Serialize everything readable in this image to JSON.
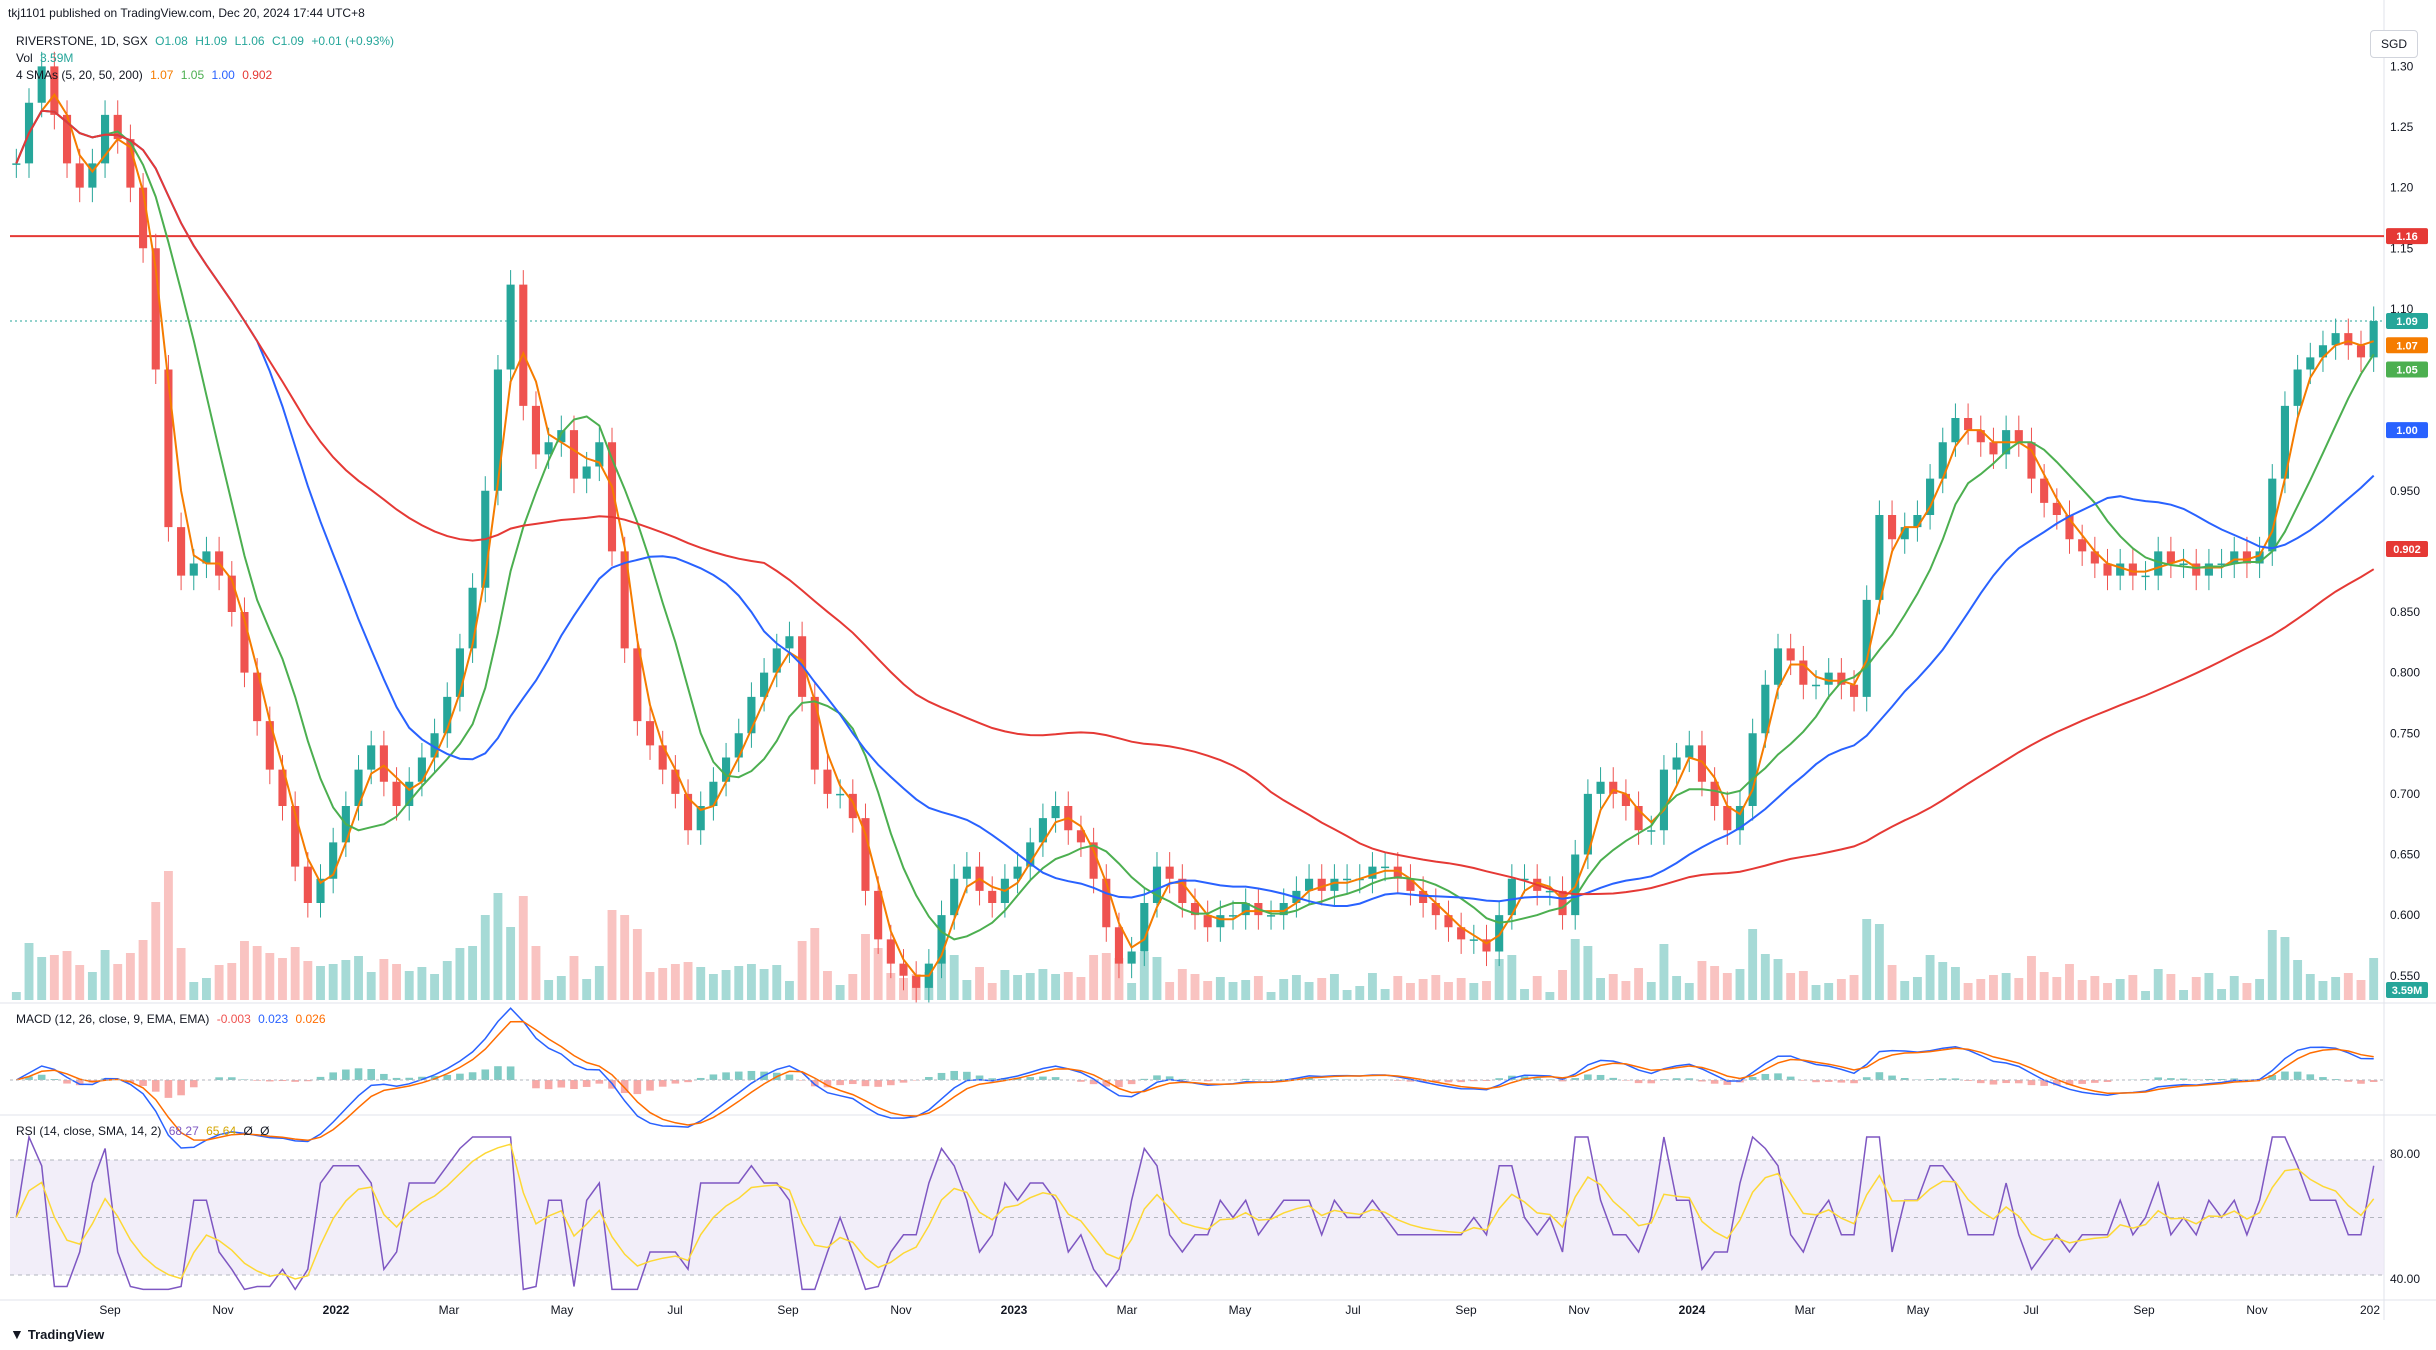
{
  "header": {
    "published_by": "tkj1101 published on TradingView.com, Dec 20, 2024 17:44 UTC+8"
  },
  "ohlc": {
    "symbol": "RIVERSTONE, 1D, SGX",
    "o": "O1.08",
    "h": "H1.09",
    "l": "L1.06",
    "c": "C1.09",
    "change": "+0.01 (+0.93%)"
  },
  "volume_legend": {
    "label": "Vol",
    "value": "3.59M"
  },
  "ma_legend": {
    "label": "4 SMAs (5, 20, 50, 200)",
    "v5": "1.07",
    "v20": "1.05",
    "v50": "1.00",
    "v200": "0.902"
  },
  "currency": "SGD",
  "macd_legend": {
    "label": "MACD (12, 26, close, 9, EMA, EMA)",
    "hist": "-0.003",
    "macd": "0.023",
    "signal": "0.026"
  },
  "rsi_legend": {
    "label": "RSI (14, close, SMA, 14, 2)",
    "rsi": "68.27",
    "ma": "65.64",
    "e1": "Ø",
    "e2": "Ø"
  },
  "branding": "TradingView",
  "colors": {
    "up": "#26a69a",
    "down": "#ef5350",
    "sma5": "#f57c00",
    "sma20": "#4caf50",
    "sma50": "#2962ff",
    "sma200": "#e53935",
    "hline": "#e53935",
    "rsi": "#7e57c2",
    "rsi_ma": "#fdd835",
    "macd_line": "#2962ff",
    "signal_line": "#ff6d00"
  },
  "chart_data": {
    "type": "candlestick",
    "price_scale": {
      "min": 0.53,
      "max": 1.33,
      "ticks": [
        "1.30",
        "1.25",
        "1.20",
        "1.15",
        "1.10",
        "0.950",
        "0.900",
        "0.850",
        "0.800",
        "0.750",
        "0.700",
        "0.650",
        "0.600",
        "0.550"
      ]
    },
    "price_labels": [
      {
        "value": 1.16,
        "text": "1.16",
        "color": "#e53935"
      },
      {
        "value": 1.09,
        "text": "1.09",
        "color": "#26a69a"
      },
      {
        "value": 1.07,
        "text": "1.07",
        "color": "#f57c00"
      },
      {
        "value": 1.05,
        "text": "1.05",
        "color": "#4caf50"
      },
      {
        "value": 1.0,
        "text": "1.00",
        "color": "#2962ff"
      },
      {
        "value": 0.902,
        "text": "0.902",
        "color": "#e53935"
      }
    ],
    "horizontal_line": 1.16,
    "last_close": 1.09,
    "volume_label": "3.59M",
    "time_axis": [
      "Sep",
      "Nov",
      "2022",
      "Mar",
      "May",
      "Jul",
      "Sep",
      "Nov",
      "2023",
      "Mar",
      "May",
      "Jul",
      "Sep",
      "Nov",
      "2024",
      "Mar",
      "May",
      "Jul",
      "Sep",
      "Nov",
      "202"
    ],
    "closes": [
      1.22,
      1.27,
      1.3,
      1.26,
      1.22,
      1.2,
      1.22,
      1.26,
      1.24,
      1.2,
      1.15,
      1.05,
      0.92,
      0.88,
      0.89,
      0.9,
      0.88,
      0.85,
      0.8,
      0.76,
      0.72,
      0.69,
      0.64,
      0.61,
      0.63,
      0.66,
      0.69,
      0.72,
      0.74,
      0.71,
      0.69,
      0.71,
      0.73,
      0.75,
      0.78,
      0.82,
      0.87,
      0.95,
      1.05,
      1.12,
      1.02,
      0.98,
      0.99,
      1.0,
      0.96,
      0.97,
      0.99,
      0.9,
      0.82,
      0.76,
      0.74,
      0.72,
      0.7,
      0.67,
      0.69,
      0.71,
      0.73,
      0.75,
      0.78,
      0.8,
      0.82,
      0.83,
      0.78,
      0.72,
      0.7,
      0.7,
      0.68,
      0.62,
      0.58,
      0.56,
      0.55,
      0.54,
      0.56,
      0.6,
      0.63,
      0.64,
      0.62,
      0.61,
      0.63,
      0.64,
      0.66,
      0.68,
      0.69,
      0.67,
      0.66,
      0.63,
      0.59,
      0.56,
      0.57,
      0.61,
      0.64,
      0.63,
      0.61,
      0.6,
      0.59,
      0.6,
      0.6,
      0.61,
      0.6,
      0.6,
      0.61,
      0.62,
      0.63,
      0.62,
      0.63,
      0.63,
      0.63,
      0.64,
      0.64,
      0.63,
      0.62,
      0.61,
      0.6,
      0.59,
      0.58,
      0.58,
      0.57,
      0.6,
      0.63,
      0.63,
      0.62,
      0.62,
      0.6,
      0.65,
      0.7,
      0.71,
      0.7,
      0.69,
      0.67,
      0.67,
      0.72,
      0.73,
      0.74,
      0.71,
      0.69,
      0.67,
      0.69,
      0.75,
      0.79,
      0.82,
      0.81,
      0.79,
      0.79,
      0.8,
      0.79,
      0.78,
      0.86,
      0.93,
      0.91,
      0.92,
      0.93,
      0.96,
      0.99,
      1.01,
      1.0,
      0.99,
      0.98,
      1.0,
      0.99,
      0.96,
      0.94,
      0.93,
      0.91,
      0.9,
      0.89,
      0.88,
      0.89,
      0.88,
      0.88,
      0.9,
      0.89,
      0.89,
      0.88,
      0.89,
      0.89,
      0.9,
      0.89,
      0.9,
      0.96,
      1.02,
      1.05,
      1.06,
      1.07,
      1.08,
      1.07,
      1.06,
      1.09
    ]
  }
}
